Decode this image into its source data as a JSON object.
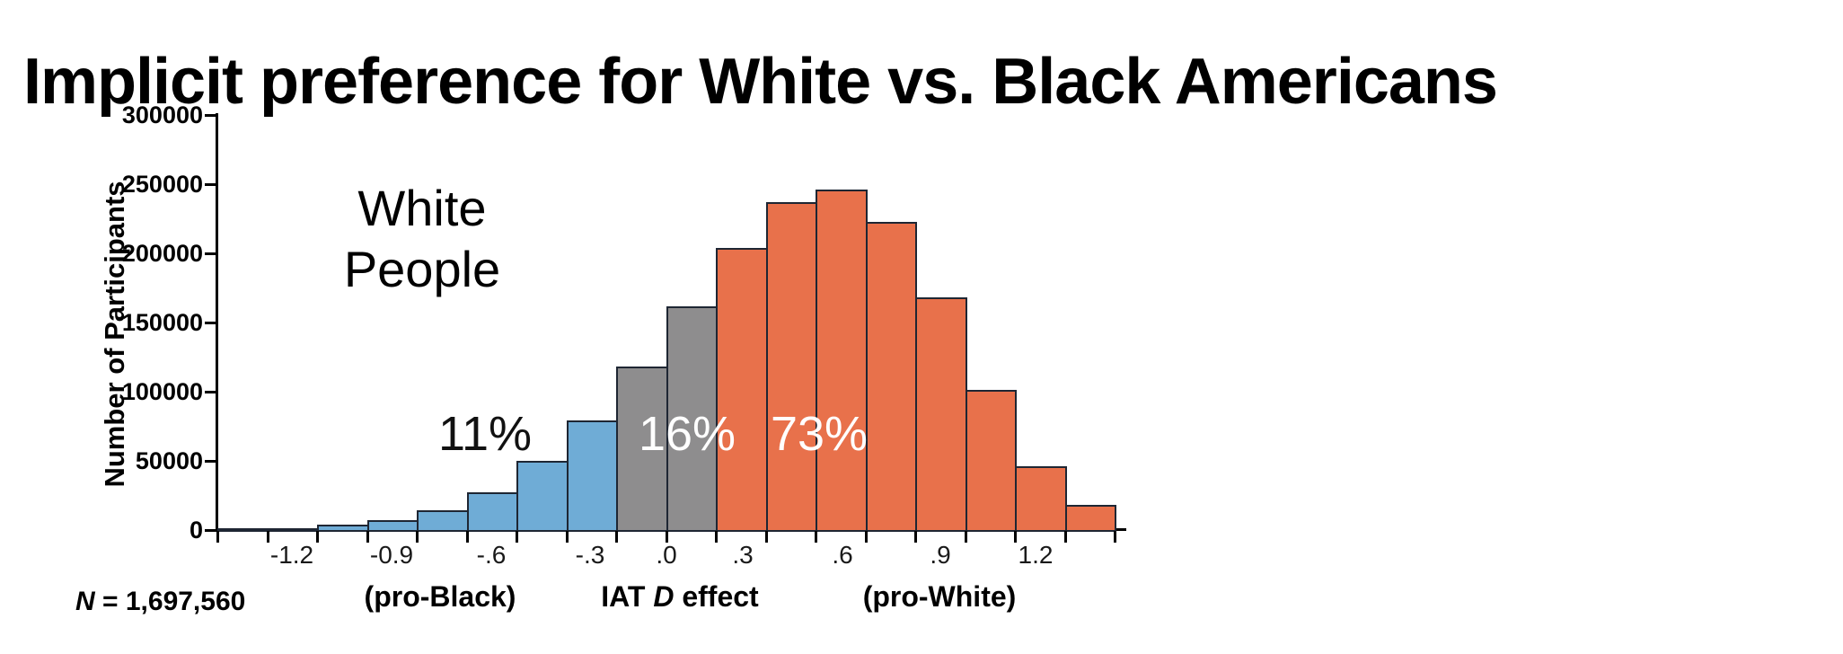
{
  "title": "Implicit preference for White vs. Black Americans",
  "annotations": {
    "group_line1": "White",
    "group_line2": "People",
    "pct_pro_black": "11%",
    "pct_neutral": "16%",
    "pct_pro_white": "73%",
    "n_symbol": "N",
    "n_rest": " = 1,697,560"
  },
  "chart_data": {
    "type": "bar",
    "title": "Implicit preference for White vs. Black Americans",
    "xlabel_prefix": "IAT ",
    "xlabel_d": "D",
    "xlabel_suffix": " effect",
    "xlabel_left_sub": "(pro-Black)",
    "xlabel_right_sub": "(pro-White)",
    "ylabel": "Number of Participants",
    "ylim": [
      0,
      300000
    ],
    "y_tick_step": 50000,
    "y_tick_labels": [
      "0",
      "50000",
      "100000",
      "150000",
      "200000",
      "250000",
      "300000"
    ],
    "x_tick_labels": [
      "-1.2",
      "-0.9",
      "-.6",
      "-.3",
      ".0",
      ".3",
      ".6",
      ".9",
      "1.2"
    ],
    "bin_width": 0.15,
    "n_total": "1,697,560",
    "legend": "off",
    "grid": "off",
    "colors": {
      "blue": "#6FACD6",
      "gray": "#8E8D8E",
      "orange": "#E8714B",
      "bar_border": "#1e2633"
    },
    "segment_shares": {
      "blue": "11%",
      "gray": "16%",
      "orange": "73%"
    },
    "bins": [
      {
        "center": -1.35,
        "value": 400,
        "group": "blue"
      },
      {
        "center": -1.2,
        "value": 1200,
        "group": "blue"
      },
      {
        "center": -1.05,
        "value": 4000,
        "group": "blue"
      },
      {
        "center": -0.9,
        "value": 7000,
        "group": "blue"
      },
      {
        "center": -0.75,
        "value": 14000,
        "group": "blue"
      },
      {
        "center": -0.6,
        "value": 27000,
        "group": "blue"
      },
      {
        "center": -0.45,
        "value": 50000,
        "group": "blue"
      },
      {
        "center": -0.3,
        "value": 79000,
        "group": "blue"
      },
      {
        "center": -0.15,
        "value": 118000,
        "group": "gray"
      },
      {
        "center": 0.0,
        "value": 162000,
        "group": "gray"
      },
      {
        "center": 0.15,
        "value": 204000,
        "group": "orange"
      },
      {
        "center": 0.3,
        "value": 237000,
        "group": "orange"
      },
      {
        "center": 0.45,
        "value": 246000,
        "group": "orange"
      },
      {
        "center": 0.6,
        "value": 223000,
        "group": "orange"
      },
      {
        "center": 0.75,
        "value": 168000,
        "group": "orange"
      },
      {
        "center": 0.9,
        "value": 101000,
        "group": "orange"
      },
      {
        "center": 1.05,
        "value": 46000,
        "group": "orange"
      },
      {
        "center": 1.2,
        "value": 18000,
        "group": "orange"
      }
    ]
  }
}
